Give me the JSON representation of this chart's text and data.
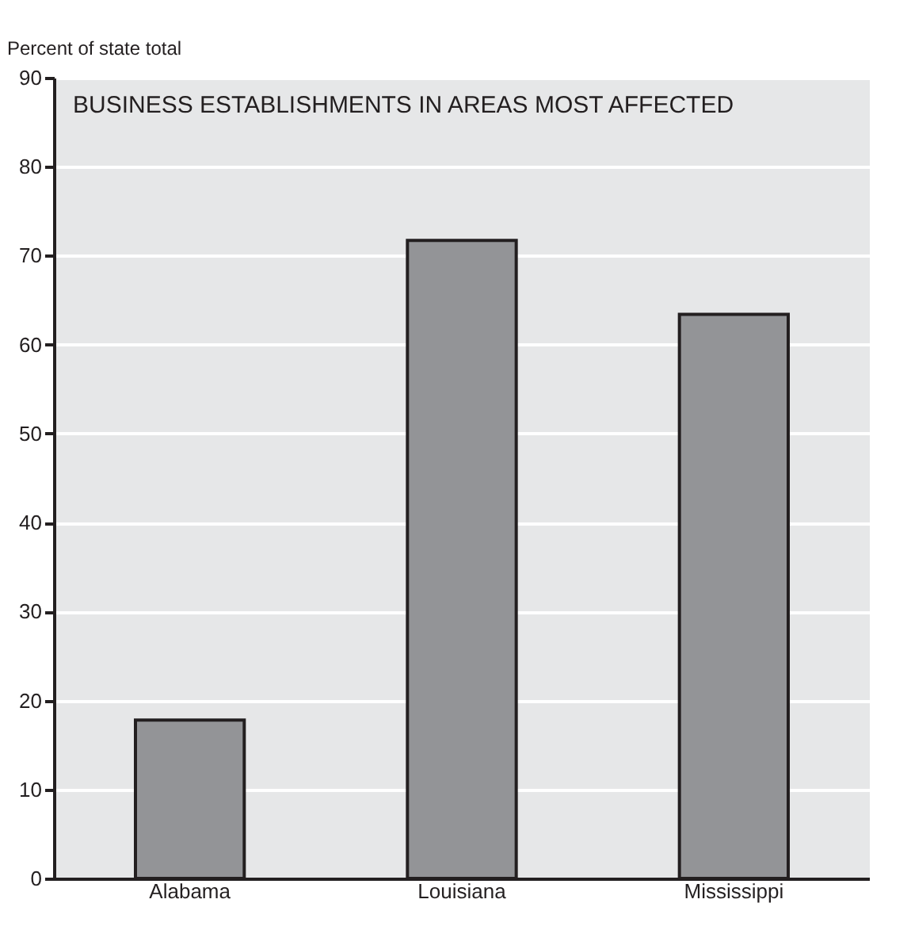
{
  "chart_data": {
    "type": "bar",
    "title": "BUSINESS ESTABLISHMENTS IN AREAS MOST AFFECTED",
    "ylabel": "Percent of state total",
    "categories": [
      "Alabama",
      "Louisiana",
      "Mississippi"
    ],
    "values": [
      17.8,
      71.7,
      63.4
    ],
    "color": "#939497",
    "ylim": [
      0,
      90
    ],
    "yticks": [
      0,
      10,
      20,
      30,
      40,
      50,
      60,
      70,
      80,
      90
    ],
    "grid": "y"
  }
}
